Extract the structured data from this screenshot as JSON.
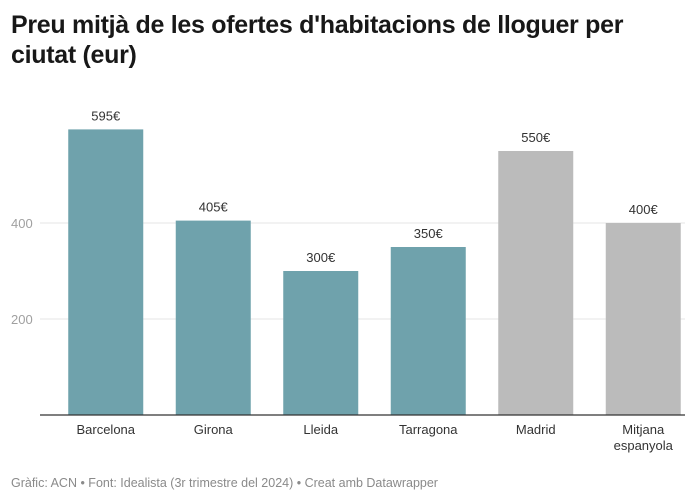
{
  "chart_data": {
    "type": "bar",
    "title": "Preu mitjà de les ofertes d'habitacions de lloguer per ciutat (eur)",
    "xlabel": "",
    "ylabel": "",
    "categories": [
      "Barcelona",
      "Girona",
      "Lleida",
      "Tarragona",
      "Madrid",
      "Mitjana espanyola"
    ],
    "category_lines": [
      [
        "Barcelona"
      ],
      [
        "Girona"
      ],
      [
        "Lleida"
      ],
      [
        "Tarragona"
      ],
      [
        "Madrid"
      ],
      [
        "Mitjana",
        "espanyola"
      ]
    ],
    "values": [
      595,
      405,
      300,
      350,
      550,
      400
    ],
    "value_labels": [
      "595€",
      "405€",
      "300€",
      "350€",
      "550€",
      "400€"
    ],
    "bar_colors": [
      "#6fa2ac",
      "#6fa2ac",
      "#6fa2ac",
      "#6fa2ac",
      "#bbbbbb",
      "#bbbbbb"
    ],
    "ylim": [
      0,
      600
    ],
    "yticks": [
      200,
      400
    ],
    "ytick_labels": [
      "200",
      "400"
    ],
    "grid": true,
    "legend": "none"
  },
  "footer": "Gràfic: ACN • Font: Idealista (3r trimestre del 2024) • Creat amb Datawrapper",
  "colors": {
    "catalan_bars": "#6fa2ac",
    "reference_bars": "#bbbbbb",
    "axis": "#333333",
    "grid": "#e6e6e6"
  }
}
